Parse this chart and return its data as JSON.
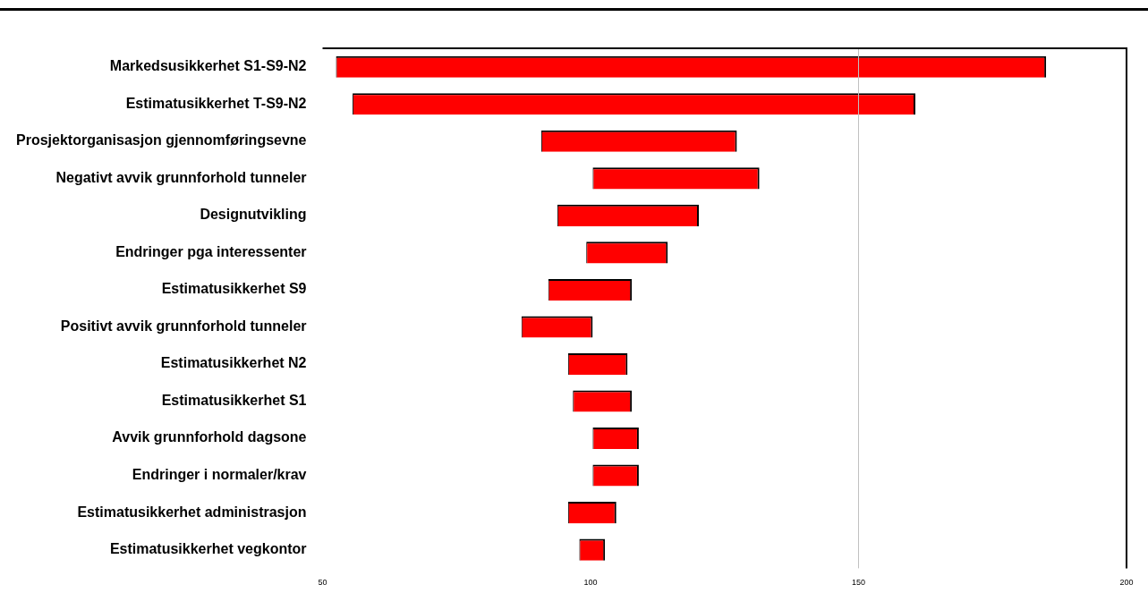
{
  "chart_data": {
    "type": "bar",
    "orientation": "horizontal",
    "categories": [
      "Markedsusikkerhet S1-S9-N2",
      "Estimatusikkerhet T-S9-N2",
      "Prosjektorganisasjon gjennomføringsevne",
      "Negativt avvik grunnforhold tunneler",
      "Designutvikling",
      "Endringer pga interessenter",
      "Estimatusikkerhet S9",
      "Positivt avvik grunnforhold tunneler",
      "Estimatusikkerhet N2",
      "Estimatusikkerhet S1",
      "Avvik grunnforhold dagsone",
      "Endringer i normaler/krav",
      "Estimatusikkerhet administrasjon",
      "Estimatusikkerhet vegkontor"
    ],
    "base": [
      52.5,
      55.6,
      90.8,
      100.4,
      93.8,
      99.2,
      92.1,
      87.1,
      95.8,
      96.7,
      100.4,
      100.4,
      95.8,
      97.9
    ],
    "values": [
      132.5,
      105,
      36.5,
      31.1,
      26.4,
      15.2,
      15.6,
      13.3,
      11.1,
      11,
      8.6,
      8.6,
      9,
      4.8
    ],
    "color": "#ff0000",
    "xlim": [
      50,
      200
    ],
    "xticks": [
      50,
      100,
      150,
      200
    ],
    "ref_lines": [
      {
        "axis": "x",
        "value": 150,
        "color": "#c0c0c0"
      }
    ],
    "grid": false,
    "legend": false
  }
}
